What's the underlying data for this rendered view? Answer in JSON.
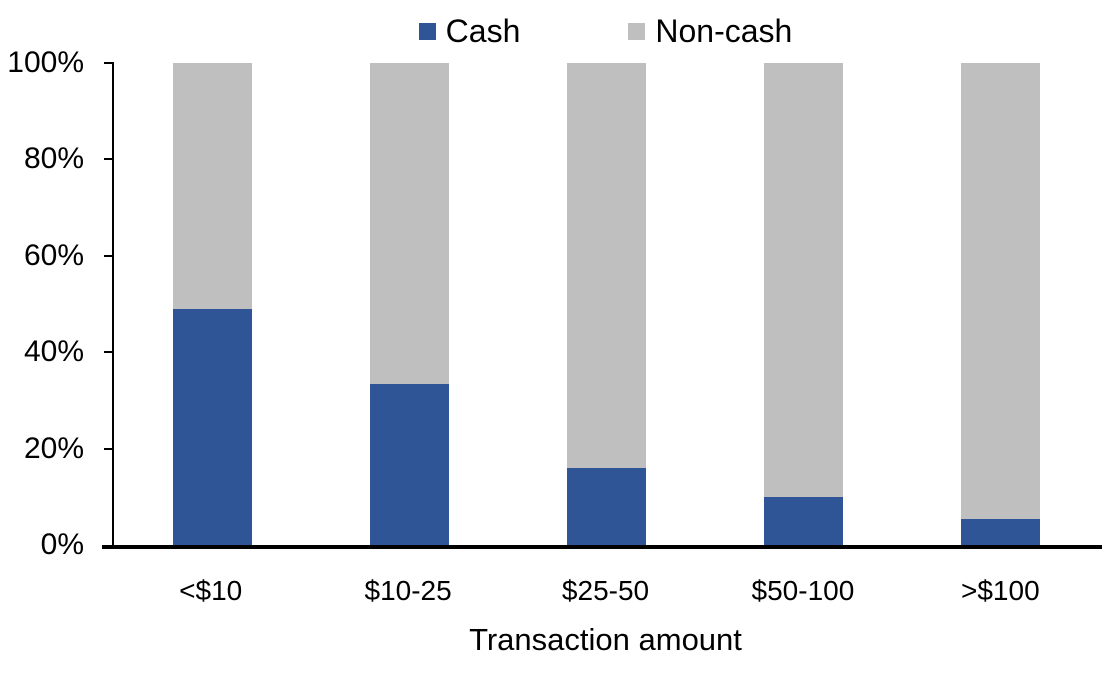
{
  "chart_data": {
    "type": "bar",
    "variant": "stacked-100-percent",
    "title": "",
    "xlabel": "Transaction amount",
    "ylabel": "",
    "categories": [
      "<$10",
      "$10-25",
      "$25-50",
      "$50-100",
      ">$100"
    ],
    "series": [
      {
        "name": "Cash",
        "color": "#2F5597",
        "values": [
          49,
          33.5,
          16,
          10,
          5.5
        ]
      },
      {
        "name": "Non-cash",
        "color": "#BFBFBF",
        "values": [
          51,
          66.5,
          84,
          90,
          94.5
        ]
      }
    ],
    "ylim": [
      0,
      100
    ],
    "ytick_step": 20,
    "ytick_labels": [
      "100%",
      "80%",
      "60%",
      "40%",
      "20%",
      "0%"
    ],
    "grid": false,
    "legend_position": "top-center",
    "colors": {
      "axis": "#000000",
      "text": "#000000",
      "background": "#FFFFFF"
    }
  }
}
